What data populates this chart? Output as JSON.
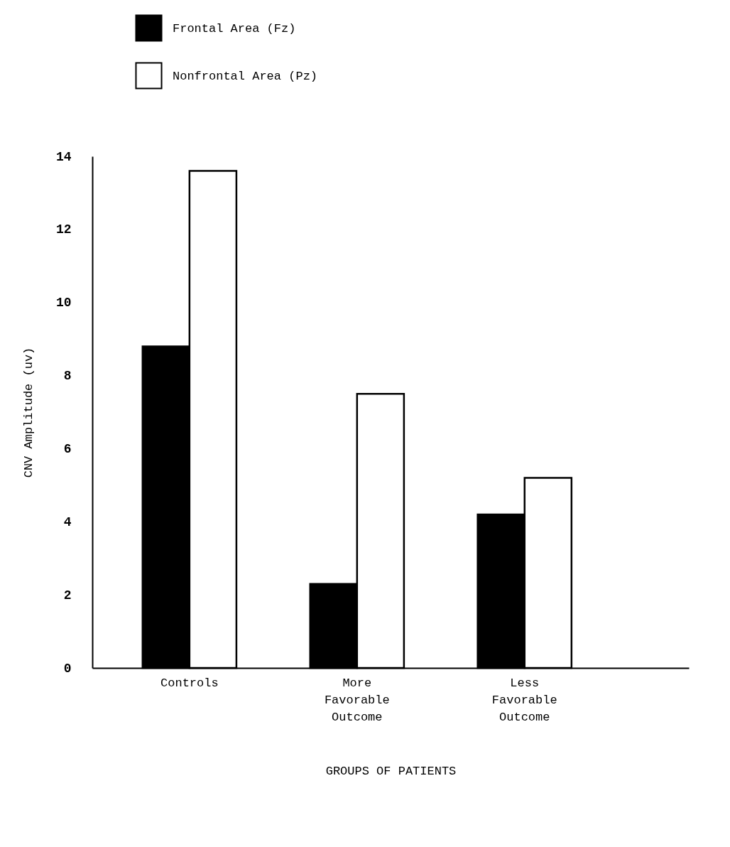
{
  "chart_data": {
    "type": "bar",
    "xlabel": "GROUPS OF PATIENTS",
    "ylabel": "CNV Amplitude (uv)",
    "categories": [
      "Controls",
      "More Favorable Outcome",
      "Less Favorable Outcome"
    ],
    "series": [
      {
        "name": "Frontal Area (Fz)",
        "color": "#000000",
        "values": [
          8.8,
          2.3,
          4.2
        ]
      },
      {
        "name": "Nonfrontal Area (Pz)",
        "color": "#ffffff",
        "values": [
          13.6,
          7.5,
          5.2
        ]
      }
    ],
    "ylim": [
      0,
      14
    ],
    "yticks": [
      0,
      2,
      4,
      6,
      8,
      10,
      12,
      14
    ],
    "grid": false,
    "legend": "top left"
  }
}
